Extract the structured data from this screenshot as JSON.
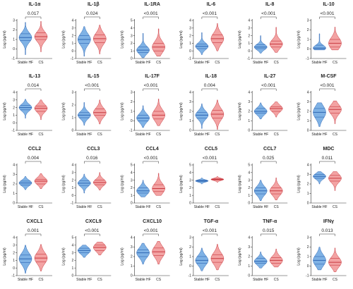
{
  "figure": {
    "group_labels": [
      "Stable HF",
      "CS"
    ],
    "y_axis_label": "Log (pg/ml)",
    "colors": {
      "stable_hf_fill": "#7fb2e5",
      "stable_hf_line": "#2f66b4",
      "cs_fill": "#f3a3a3",
      "cs_line": "#c8383f",
      "axis": "#333333"
    }
  },
  "chart_data": [
    {
      "type": "violin",
      "title": "IL-1α",
      "p": "0.017",
      "ylim": [
        -1,
        3
      ],
      "yticks": [
        "-1",
        "0",
        "1",
        "2",
        "3"
      ],
      "groups": [
        {
          "name": "Stable HF",
          "median": 1.2,
          "q1": 0.9,
          "q3": 1.6,
          "min": -0.6,
          "max": 2.8
        },
        {
          "name": "CS",
          "median": 1.3,
          "q1": 1.0,
          "q3": 1.7,
          "min": -0.3,
          "max": 2.9
        }
      ]
    },
    {
      "type": "violin",
      "title": "IL-1β",
      "p": "0.024",
      "ylim": [
        -1,
        4
      ],
      "yticks": [
        "-1",
        "0",
        "1",
        "2",
        "3",
        "4"
      ],
      "groups": [
        {
          "name": "Stable HF",
          "median": 1.5,
          "q1": 1.0,
          "q3": 2.0,
          "min": -0.7,
          "max": 3.2
        },
        {
          "name": "CS",
          "median": 1.6,
          "q1": 1.1,
          "q3": 2.1,
          "min": -0.4,
          "max": 3.4
        }
      ]
    },
    {
      "type": "violin",
      "title": "IL-1RA",
      "p": "<0.001",
      "ylim": [
        0,
        5
      ],
      "yticks": [
        "0",
        "1",
        "2",
        "3",
        "4",
        "5"
      ],
      "groups": [
        {
          "name": "Stable HF",
          "median": 1.1,
          "q1": 0.8,
          "q3": 1.5,
          "min": 0.1,
          "max": 3.3
        },
        {
          "name": "CS",
          "median": 1.5,
          "q1": 1.0,
          "q3": 2.0,
          "min": 0.3,
          "max": 3.9
        }
      ]
    },
    {
      "type": "violin",
      "title": "IL-6",
      "p": "<0.001",
      "ylim": [
        -1,
        4
      ],
      "yticks": [
        "-1",
        "0",
        "1",
        "2",
        "3",
        "4"
      ],
      "groups": [
        {
          "name": "Stable HF",
          "median": 0.6,
          "q1": 0.3,
          "q3": 0.9,
          "min": -0.5,
          "max": 2.4
        },
        {
          "name": "CS",
          "median": 1.6,
          "q1": 1.1,
          "q3": 2.1,
          "min": 0.0,
          "max": 3.6
        }
      ]
    },
    {
      "type": "violin",
      "title": "IL-8",
      "p": "<0.001",
      "ylim": [
        -1,
        4
      ],
      "yticks": [
        "-1",
        "0",
        "1",
        "2",
        "3",
        "4"
      ],
      "groups": [
        {
          "name": "Stable HF",
          "median": 0.5,
          "q1": 0.3,
          "q3": 0.8,
          "min": -0.3,
          "max": 2.0
        },
        {
          "name": "CS",
          "median": 0.9,
          "q1": 0.5,
          "q3": 1.3,
          "min": -0.2,
          "max": 3.1
        }
      ]
    },
    {
      "type": "violin",
      "title": "IL-10",
      "p": "<0.001",
      "ylim": [
        -1,
        3
      ],
      "yticks": [
        "-1",
        "0",
        "1",
        "2",
        "3"
      ],
      "groups": [
        {
          "name": "Stable HF",
          "median": 0.1,
          "q1": 0.0,
          "q3": 0.4,
          "min": -0.1,
          "max": 1.6
        },
        {
          "name": "CS",
          "median": 0.6,
          "q1": 0.2,
          "q3": 1.0,
          "min": -0.1,
          "max": 2.3
        }
      ]
    },
    {
      "type": "violin",
      "title": "IL-13",
      "p": "0.014",
      "ylim": [
        -1,
        4
      ],
      "yticks": [
        "-1",
        "0",
        "1",
        "2",
        "3",
        "4"
      ],
      "groups": [
        {
          "name": "Stable HF",
          "median": 2.0,
          "q1": 1.7,
          "q3": 2.3,
          "min": 0.6,
          "max": 3.1
        },
        {
          "name": "CS",
          "median": 1.9,
          "q1": 1.5,
          "q3": 2.2,
          "min": 0.4,
          "max": 3.0
        }
      ]
    },
    {
      "type": "violin",
      "title": "IL-15",
      "p": "<0.001",
      "ylim": [
        0,
        3
      ],
      "yticks": [
        "0",
        "1",
        "2",
        "3"
      ],
      "groups": [
        {
          "name": "Stable HF",
          "median": 1.2,
          "q1": 1.0,
          "q3": 1.4,
          "min": 0.4,
          "max": 2.2
        },
        {
          "name": "CS",
          "median": 1.4,
          "q1": 1.2,
          "q3": 1.7,
          "min": 0.5,
          "max": 2.4
        }
      ]
    },
    {
      "type": "violin",
      "title": "IL-17F",
      "p": "<0.001",
      "ylim": [
        -1,
        3
      ],
      "yticks": [
        "-1",
        "0",
        "1",
        "2",
        "3"
      ],
      "groups": [
        {
          "name": "Stable HF",
          "median": 0.3,
          "q1": 0.0,
          "q3": 0.6,
          "min": -0.7,
          "max": 1.6
        },
        {
          "name": "CS",
          "median": 0.6,
          "q1": 0.2,
          "q3": 1.0,
          "min": -0.5,
          "max": 2.3
        }
      ]
    },
    {
      "type": "violin",
      "title": "IL-18",
      "p": "0.004",
      "ylim": [
        0,
        4
      ],
      "yticks": [
        "0",
        "1",
        "2",
        "3",
        "4"
      ],
      "groups": [
        {
          "name": "Stable HF",
          "median": 1.6,
          "q1": 1.3,
          "q3": 1.9,
          "min": 0.2,
          "max": 2.8
        },
        {
          "name": "CS",
          "median": 1.7,
          "q1": 1.3,
          "q3": 2.1,
          "min": 0.1,
          "max": 3.2
        }
      ]
    },
    {
      "type": "violin",
      "title": "IL-27",
      "p": "<0.001",
      "ylim": [
        0,
        4
      ],
      "yticks": [
        "0",
        "1",
        "2",
        "3",
        "4"
      ],
      "groups": [
        {
          "name": "Stable HF",
          "median": 2.0,
          "q1": 1.8,
          "q3": 2.3,
          "min": 1.2,
          "max": 2.9
        },
        {
          "name": "CS",
          "median": 2.3,
          "q1": 2.0,
          "q3": 2.5,
          "min": 1.4,
          "max": 3.0
        }
      ]
    },
    {
      "type": "violin",
      "title": "M-CSF",
      "p": "<0.001",
      "ylim": [
        0,
        4
      ],
      "yticks": [
        "0",
        "1",
        "2",
        "3",
        "4"
      ],
      "groups": [
        {
          "name": "Stable HF",
          "median": 1.9,
          "q1": 1.4,
          "q3": 2.3,
          "min": 0.4,
          "max": 2.9
        },
        {
          "name": "CS",
          "median": 2.2,
          "q1": 1.8,
          "q3": 2.5,
          "min": 0.7,
          "max": 3.1
        }
      ]
    },
    {
      "type": "violin",
      "title": "CCL2",
      "p": "0.004",
      "ylim": [
        0,
        4
      ],
      "yticks": [
        "0",
        "1",
        "2",
        "3",
        "4"
      ],
      "groups": [
        {
          "name": "Stable HF",
          "median": 2.1,
          "q1": 1.9,
          "q3": 2.3,
          "min": 1.4,
          "max": 2.8
        },
        {
          "name": "CS",
          "median": 2.3,
          "q1": 2.0,
          "q3": 2.5,
          "min": 1.5,
          "max": 3.1
        }
      ]
    },
    {
      "type": "violin",
      "title": "CCL3",
      "p": "0.016",
      "ylim": [
        -1,
        4
      ],
      "yticks": [
        "-1",
        "0",
        "1",
        "2",
        "3",
        "4"
      ],
      "groups": [
        {
          "name": "Stable HF",
          "median": 1.6,
          "q1": 1.3,
          "q3": 1.9,
          "min": 0.3,
          "max": 2.8
        },
        {
          "name": "CS",
          "median": 1.7,
          "q1": 1.4,
          "q3": 2.0,
          "min": 0.7,
          "max": 3.0
        }
      ]
    },
    {
      "type": "violin",
      "title": "CCL4",
      "p": "<0.001",
      "ylim": [
        0,
        5
      ],
      "yticks": [
        "0",
        "1",
        "2",
        "3",
        "4",
        "5"
      ],
      "groups": [
        {
          "name": "Stable HF",
          "median": 1.6,
          "q1": 1.3,
          "q3": 2.0,
          "min": 0.8,
          "max": 3.0
        },
        {
          "name": "CS",
          "median": 1.9,
          "q1": 1.5,
          "q3": 2.4,
          "min": 1.0,
          "max": 3.9
        }
      ]
    },
    {
      "type": "violin",
      "title": "CCL5",
      "p": "<0.001",
      "ylim": [
        0,
        5
      ],
      "yticks": [
        "0",
        "1",
        "2",
        "3",
        "4",
        "5"
      ],
      "groups": [
        {
          "name": "Stable HF",
          "median": 2.9,
          "q1": 2.8,
          "q3": 3.0,
          "min": 2.5,
          "max": 3.3
        },
        {
          "name": "CS",
          "median": 3.1,
          "q1": 3.0,
          "q3": 3.2,
          "min": 2.7,
          "max": 3.5
        }
      ]
    },
    {
      "type": "violin",
      "title": "CCL7",
      "p": "0.025",
      "ylim": [
        0,
        5
      ],
      "yticks": [
        "0",
        "1",
        "2",
        "3",
        "4",
        "5"
      ],
      "groups": [
        {
          "name": "Stable HF",
          "median": 1.6,
          "q1": 1.2,
          "q3": 2.0,
          "min": 0.3,
          "max": 3.0
        },
        {
          "name": "CS",
          "median": 1.6,
          "q1": 1.2,
          "q3": 2.0,
          "min": 0.4,
          "max": 3.3
        }
      ]
    },
    {
      "type": "violin",
      "title": "MDC",
      "p": "0.011",
      "ylim": [
        0,
        4
      ],
      "yticks": [
        "0",
        "1",
        "2",
        "3",
        "4"
      ],
      "groups": [
        {
          "name": "Stable HF",
          "median": 2.8,
          "q1": 2.6,
          "q3": 3.0,
          "min": 2.0,
          "max": 3.3
        },
        {
          "name": "CS",
          "median": 2.6,
          "q1": 2.3,
          "q3": 2.9,
          "min": 1.3,
          "max": 3.3
        }
      ]
    },
    {
      "type": "violin",
      "title": "CXCL1",
      "p": "0.001",
      "ylim": [
        -1,
        4
      ],
      "yticks": [
        "-1",
        "0",
        "1",
        "2",
        "3",
        "4"
      ],
      "groups": [
        {
          "name": "Stable HF",
          "median": 1.2,
          "q1": 0.7,
          "q3": 1.7,
          "min": -0.7,
          "max": 3.0
        },
        {
          "name": "CS",
          "median": 1.3,
          "q1": 0.8,
          "q3": 1.8,
          "min": -0.4,
          "max": 3.1
        }
      ]
    },
    {
      "type": "violin",
      "title": "CXCL9",
      "p": "<0.001",
      "ylim": [
        0,
        5
      ],
      "yticks": [
        "0",
        "1",
        "2",
        "3",
        "4",
        "5"
      ],
      "groups": [
        {
          "name": "Stable HF",
          "median": 3.3,
          "q1": 3.0,
          "q3": 3.6,
          "min": 2.4,
          "max": 4.0
        },
        {
          "name": "CS",
          "median": 3.7,
          "q1": 3.3,
          "q3": 4.0,
          "min": 2.7,
          "max": 4.4
        }
      ]
    },
    {
      "type": "violin",
      "title": "CXCL10",
      "p": "<0.001",
      "ylim": [
        0,
        4
      ],
      "yticks": [
        "0",
        "1",
        "2",
        "3",
        "4"
      ],
      "groups": [
        {
          "name": "Stable HF",
          "median": 2.4,
          "q1": 2.0,
          "q3": 2.7,
          "min": 1.2,
          "max": 3.4
        },
        {
          "name": "CS",
          "median": 2.5,
          "q1": 2.1,
          "q3": 2.9,
          "min": 1.2,
          "max": 3.6
        }
      ]
    },
    {
      "type": "violin",
      "title": "TGF-α",
      "p": "<0.001",
      "ylim": [
        -1,
        3
      ],
      "yticks": [
        "-1",
        "0",
        "1",
        "2",
        "3"
      ],
      "groups": [
        {
          "name": "Stable HF",
          "median": 0.6,
          "q1": 0.3,
          "q3": 1.0,
          "min": -0.5,
          "max": 1.9
        },
        {
          "name": "CS",
          "median": 0.8,
          "q1": 0.4,
          "q3": 1.2,
          "min": -0.4,
          "max": 2.3
        }
      ]
    },
    {
      "type": "violin",
      "title": "TNF-α",
      "p": "0.015",
      "ylim": [
        0,
        4
      ],
      "yticks": [
        "0",
        "1",
        "2",
        "3",
        "4"
      ],
      "groups": [
        {
          "name": "Stable HF",
          "median": 1.5,
          "q1": 1.3,
          "q3": 1.8,
          "min": 0.8,
          "max": 2.5
        },
        {
          "name": "CS",
          "median": 1.6,
          "q1": 1.3,
          "q3": 1.9,
          "min": 0.9,
          "max": 2.8
        }
      ]
    },
    {
      "type": "violin",
      "title": "IFNγ",
      "p": "0.013",
      "ylim": [
        -1,
        3
      ],
      "yticks": [
        "-1",
        "0",
        "1",
        "2",
        "3"
      ],
      "groups": [
        {
          "name": "Stable HF",
          "median": 0.6,
          "q1": 0.2,
          "q3": 1.0,
          "min": -0.4,
          "max": 2.0
        },
        {
          "name": "CS",
          "median": 0.4,
          "q1": 0.1,
          "q3": 0.8,
          "min": -0.6,
          "max": 1.9
        }
      ]
    }
  ]
}
